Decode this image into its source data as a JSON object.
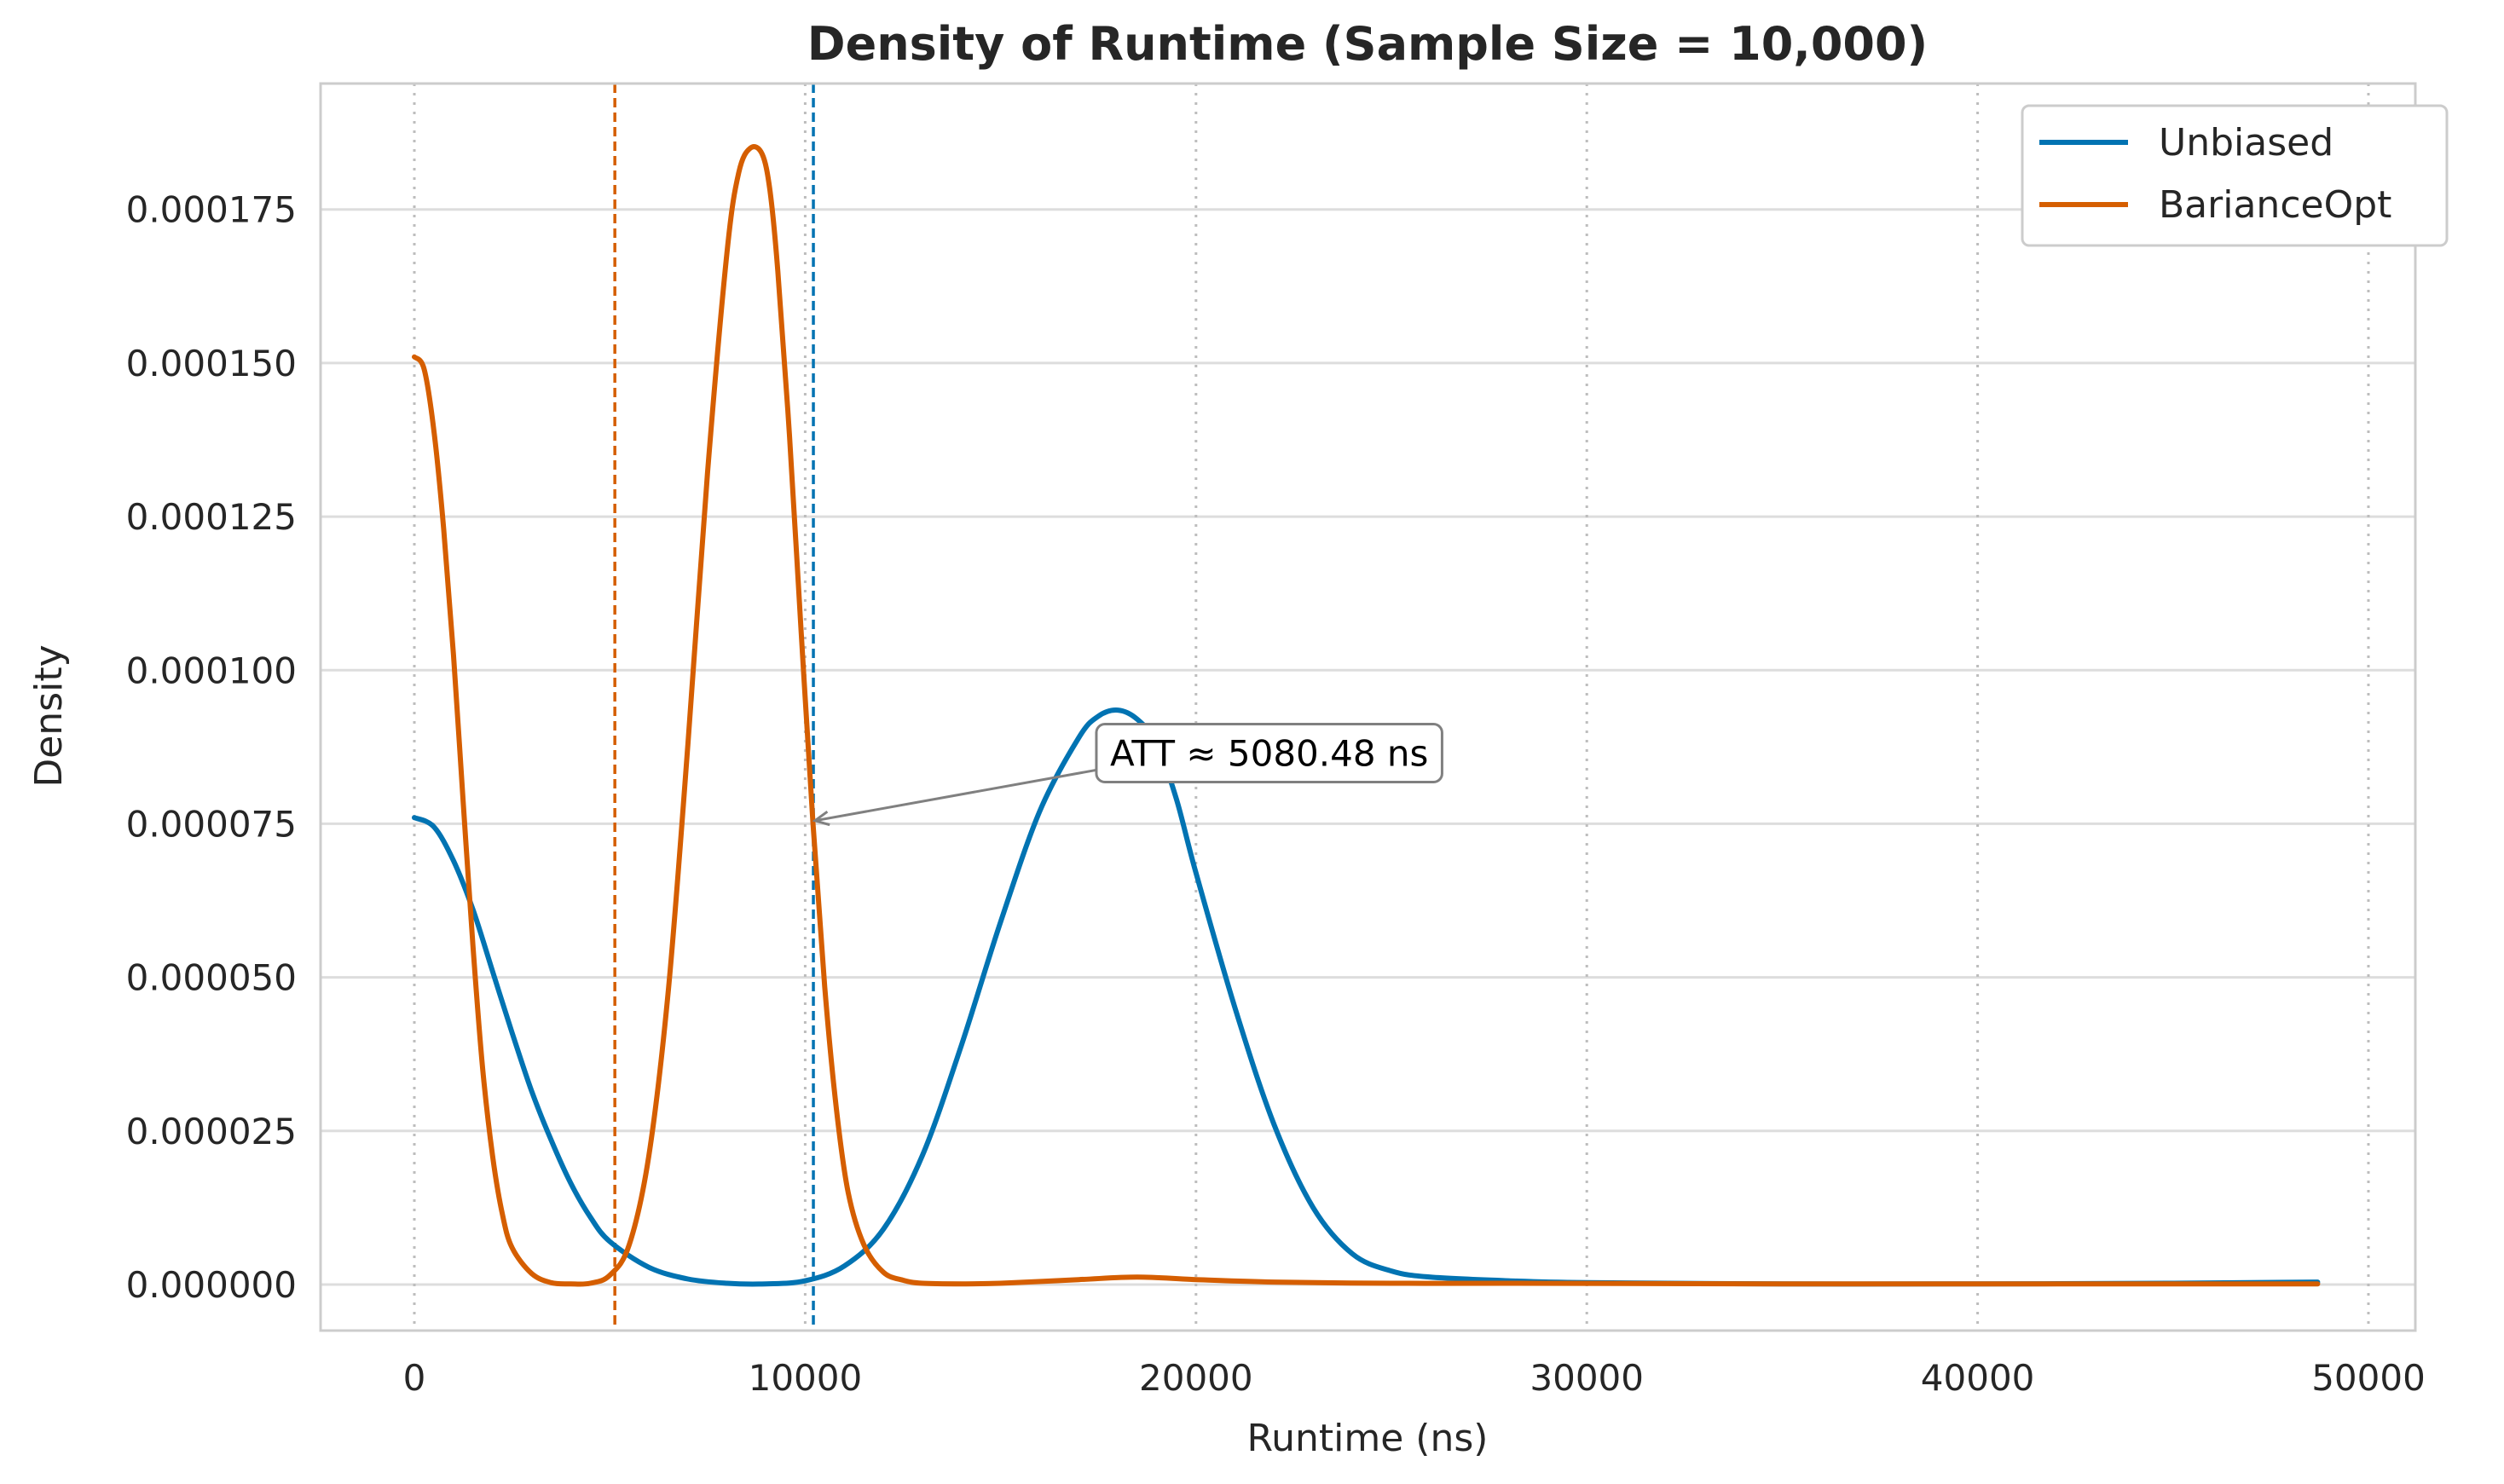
{
  "chart_data": {
    "type": "line",
    "title": "Density of Runtime (Sample Size = 10,000)",
    "xlabel": "Runtime (ns)",
    "ylabel": "Density",
    "xlim": [
      -2400,
      51200
    ],
    "ylim": [
      -7.5e-06,
      0.0001955
    ],
    "xticks": [
      0,
      10000,
      20000,
      30000,
      40000,
      50000
    ],
    "xtick_labels": [
      "0",
      "10000",
      "20000",
      "30000",
      "40000",
      "50000"
    ],
    "yticks": [
      0,
      2.5e-05,
      5e-05,
      7.5e-05,
      0.0001,
      0.000125,
      0.00015,
      0.000175
    ],
    "ytick_labels": [
      "0.000000",
      "0.000025",
      "0.000050",
      "0.000075",
      "0.000100",
      "0.000125",
      "0.000150",
      "0.000175"
    ],
    "grid": true,
    "legend_position": "top-right",
    "series": [
      {
        "name": "Unbiased",
        "color": "#0173b2",
        "x": [
          0,
          500,
          1000,
          1500,
          2000,
          2500,
          3000,
          3500,
          4000,
          4500,
          5000,
          6000,
          7000,
          8000,
          9000,
          10000,
          11000,
          12000,
          13000,
          14000,
          15000,
          16000,
          17000,
          17500,
          18000,
          18500,
          19000,
          19500,
          20000,
          21000,
          22000,
          23000,
          24000,
          25000,
          26000,
          28000,
          30000,
          35000,
          40000,
          45000,
          48700
        ],
        "y": [
          7.6e-05,
          7.45e-05,
          6.9e-05,
          6.1e-05,
          5.1e-05,
          4.1e-05,
          3.15e-05,
          2.35e-05,
          1.65e-05,
          1.1e-05,
          7e-06,
          2.8e-06,
          9e-07,
          2e-07,
          1e-07,
          6e-07,
          3e-06,
          9e-06,
          2.1e-05,
          3.9e-05,
          5.9e-05,
          7.7e-05,
          8.9e-05,
          9.25e-05,
          9.35e-05,
          9.2e-05,
          8.8e-05,
          7.9e-05,
          6.7e-05,
          4.5e-05,
          2.6e-05,
          1.25e-05,
          5e-06,
          2.2e-06,
          1.2e-06,
          6e-07,
          3e-07,
          1e-07,
          1e-07,
          2e-07,
          4e-07
        ]
      },
      {
        "name": "BarianceOpt",
        "color": "#d55e00",
        "x": [
          0,
          250,
          500,
          750,
          1000,
          1250,
          1500,
          1750,
          2000,
          2250,
          2500,
          3000,
          3500,
          4000,
          4500,
          5000,
          5500,
          6000,
          6500,
          7000,
          7500,
          8000,
          8300,
          8600,
          8900,
          9100,
          9300,
          9600,
          9900,
          10200,
          10500,
          10800,
          11100,
          11500,
          12000,
          12500,
          13000,
          14000,
          15000,
          17000,
          18500,
          20000,
          22000,
          25000,
          28000,
          35000,
          45000,
          48700
        ],
        "y": [
          0.000151,
          0.000149,
          0.000139,
          0.000123,
          0.0001025,
          7.85e-05,
          5.5e-05,
          3.5e-05,
          2.1e-05,
          1.15e-05,
          6e-06,
          1.8e-06,
          3e-07,
          1e-07,
          2e-07,
          1.5e-06,
          6.5e-06,
          2.1e-05,
          4.8e-05,
          8.8e-05,
          0.000132,
          0.000168,
          0.000181,
          0.000185,
          0.000184,
          0.000178,
          0.000165,
          0.000138,
          0.000106,
          7.5e-05,
          4.85e-05,
          2.85e-05,
          1.5e-05,
          6.5e-06,
          2e-06,
          7e-07,
          2e-07,
          1e-07,
          2e-07,
          8e-07,
          1.2e-06,
          8e-07,
          4e-07,
          2e-07,
          2e-07,
          1e-07,
          1e-07,
          1e-07
        ]
      }
    ],
    "vlines": [
      {
        "x": 5130,
        "color": "#d55e00",
        "style": "dashed"
      },
      {
        "x": 10210,
        "color": "#0173b2",
        "style": "dashed"
      }
    ],
    "annotation": {
      "text": "ATT ≈ 5080.48 ns",
      "text_at": [
        17800,
        8.65e-05
      ],
      "arrow_to": [
        10250,
        7.55e-05
      ],
      "arrow_color": "#808080"
    }
  }
}
